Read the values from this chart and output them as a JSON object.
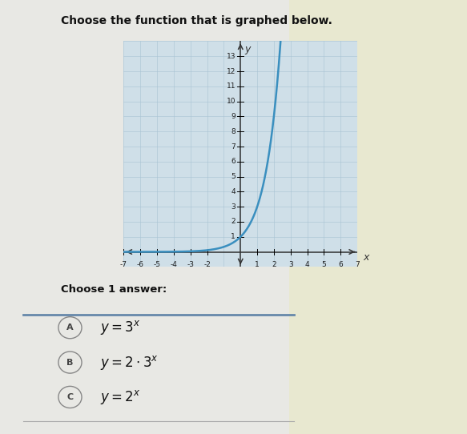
{
  "title": "Choose the function that is graphed below.",
  "x_min": -7,
  "x_max": 7,
  "y_min": -1,
  "y_max": 14,
  "x_ticks": [
    -7,
    -6,
    -5,
    -4,
    -3,
    -2,
    1,
    2,
    3,
    4,
    5,
    6,
    7
  ],
  "y_ticks": [
    1,
    2,
    3,
    4,
    5,
    6,
    7,
    8,
    9,
    10,
    11,
    12,
    13
  ],
  "curve_color": "#3a8fbf",
  "curve_linewidth": 1.8,
  "grid_color": "#a8c4d4",
  "grid_alpha": 0.8,
  "plot_bg_color": "#cfdfe8",
  "page_bg_color": "#e8e8e4",
  "right_panel_color": "#e8e8d0",
  "answer_section_title": "Choose 1 answer:",
  "answers_latex": [
    "y=3^x",
    "y=2 \\cdot 3^x",
    "y=2^x"
  ],
  "answer_labels": [
    "A",
    "B",
    "C"
  ],
  "divider_color": "#6688aa",
  "function": "3^x",
  "tick_fontsize": 6.5,
  "title_fontsize": 10
}
